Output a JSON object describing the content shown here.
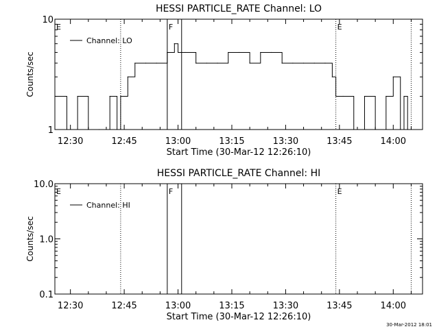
{
  "chart_data": [
    {
      "type": "line",
      "title": "HESSI PARTICLE_RATE Channel: LO",
      "xlabel": "Start Time (30-Mar-12 12:26:10)",
      "ylabel": "Counts/sec",
      "yscale": "log",
      "ylim": [
        1,
        10
      ],
      "xlim_minutes": [
        -0.5,
        102
      ],
      "x_ticks": [
        "12:30",
        "12:45",
        "13:00",
        "13:15",
        "13:30",
        "13:45",
        "14:00"
      ],
      "y_tick_labels": [
        {
          "value": 1,
          "label": "1"
        },
        {
          "value": 10,
          "label": "10"
        }
      ],
      "legend": {
        "position": "top-left",
        "entries": [
          "Channel: LO"
        ]
      },
      "markers": [
        {
          "time": "12:44",
          "label": "",
          "style": "dotted"
        },
        {
          "time": "12:57",
          "label": "F",
          "style": "solid"
        },
        {
          "time": "13:01",
          "label": "",
          "style": "solid"
        },
        {
          "time": "13:44",
          "label": "E",
          "style": "dotted"
        },
        {
          "time": "14:05",
          "label": "",
          "style": "dotted"
        }
      ],
      "corner_labels": [
        "E"
      ],
      "series": [
        {
          "name": "Channel: LO",
          "x_time": [
            "12:26",
            "12:29",
            "12:32",
            "12:35",
            "12:38",
            "12:41",
            "12:43",
            "12:44",
            "12:46",
            "12:48",
            "12:51",
            "12:54",
            "12:57",
            "12:59",
            "13:00",
            "13:02",
            "13:05",
            "13:08",
            "13:11",
            "13:14",
            "13:17",
            "13:20",
            "13:23",
            "13:26",
            "13:29",
            "13:32",
            "13:35",
            "13:38",
            "13:41",
            "13:43",
            "13:44",
            "13:46",
            "13:49",
            "13:52",
            "13:55",
            "13:58",
            "14:00",
            "14:02",
            "14:03",
            "14:04",
            "14:05"
          ],
          "y": [
            2,
            1,
            2,
            1,
            1,
            2,
            1,
            2,
            3,
            4,
            4,
            4,
            5,
            6,
            5,
            5,
            4,
            4,
            4,
            5,
            5,
            4,
            5,
            5,
            4,
            4,
            4,
            4,
            4,
            3,
            2,
            2,
            1,
            2,
            1,
            2,
            3,
            1,
            2,
            1,
            1
          ]
        }
      ]
    },
    {
      "type": "line",
      "title": "HESSI PARTICLE_RATE Channel: HI",
      "xlabel": "Start Time (30-Mar-12 12:26:10)",
      "ylabel": "Counts/sec",
      "yscale": "log",
      "ylim": [
        0.1,
        10
      ],
      "xlim_minutes": [
        -0.5,
        102
      ],
      "x_ticks": [
        "12:30",
        "12:45",
        "13:00",
        "13:15",
        "13:30",
        "13:45",
        "14:00"
      ],
      "y_tick_labels": [
        {
          "value": 0.1,
          "label": "0.1"
        },
        {
          "value": 1,
          "label": "1.0"
        },
        {
          "value": 10,
          "label": "10.0"
        }
      ],
      "legend": {
        "position": "top-left",
        "entries": [
          "Channel: HI"
        ]
      },
      "markers": [
        {
          "time": "12:44",
          "label": "",
          "style": "dotted"
        },
        {
          "time": "12:57",
          "label": "F",
          "style": "solid"
        },
        {
          "time": "13:01",
          "label": "",
          "style": "solid"
        },
        {
          "time": "13:44",
          "label": "E",
          "style": "dotted"
        },
        {
          "time": "14:05",
          "label": "",
          "style": "dotted"
        }
      ],
      "corner_labels": [
        "E"
      ],
      "series": [
        {
          "name": "Channel: HI",
          "x_time": [],
          "y": []
        }
      ]
    }
  ],
  "footer": {
    "timestamp": "30-Mar-2012 18:01"
  }
}
